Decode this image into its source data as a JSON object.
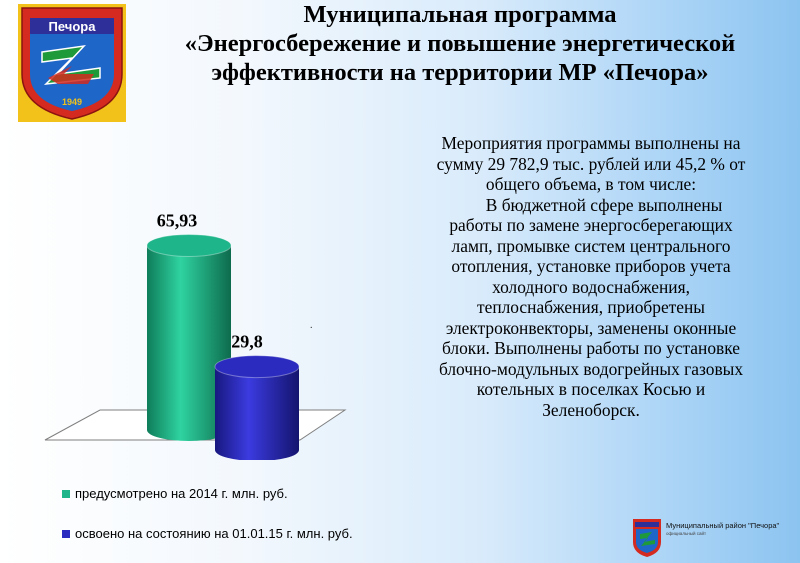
{
  "emblem": {
    "name": "Печора",
    "year": "1949"
  },
  "header": {
    "title_lines": [
      "Муниципальная программа",
      "«Энергосбережение и повышение энергетической",
      "эффективности на территории МР «Печора»"
    ]
  },
  "chart_data": {
    "type": "bar",
    "series": [
      {
        "name": "предусмотрено на 2014 г. млн. руб.",
        "value": 65.93,
        "label": "65,93",
        "color": "#1fb58a"
      },
      {
        "name": "освоено на состоянию на 01.01.15 г. млн. руб.",
        "value": 29.8,
        "label": "29,8",
        "color": "#2b2bbf"
      }
    ],
    "ylim": [
      0,
      70
    ],
    "grid": false,
    "legend_position": "bottom"
  },
  "description": {
    "lines": [
      "Мероприятия программы выполнены  на",
      "сумму 29 782,9 тыс. рублей или 45,2 % от",
      "общего объема, в том числе:",
      "      В бюджетной сфере выполнены",
      "работы по замене энергосберегающих",
      "ламп, промывке систем центрального",
      "отопления, установке приборов учета",
      "холодного водоснабжения,",
      "теплоснабжения, приобретены",
      "электроконвекторы, заменены оконные",
      "блоки.     Выполнены работы по установке",
      "блочно-модульных водогрейных газовых",
      "котельных в поселках Косью и",
      "Зеленоборск."
    ]
  },
  "footer": {
    "text": "Муниципальный район \"Печора\"",
    "subtext": "официальный сайт"
  },
  "colors": {
    "emblem_red": "#d42a1f",
    "emblem_gold": "#f2c21a",
    "emblem_blue": "#1e66c8",
    "emblem_green": "#1e9a3a"
  }
}
